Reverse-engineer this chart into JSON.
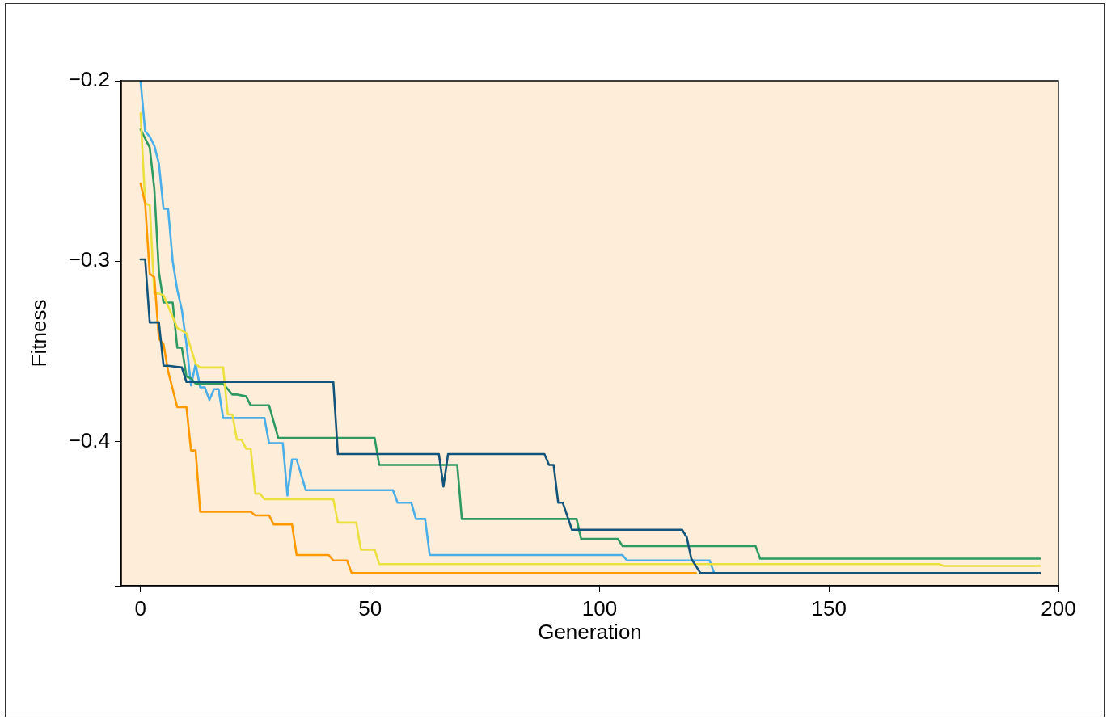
{
  "chart_data": {
    "type": "line",
    "xlabel": "Generation",
    "ylabel": "Fitness",
    "xlim": [
      -4.2,
      200
    ],
    "xticks": [
      0,
      50,
      100,
      150,
      200
    ],
    "ylim": [
      -0.48,
      -0.2
    ],
    "yticks": [
      {
        "value": -0.2,
        "label": "−0.2"
      },
      {
        "value": -0.3,
        "label": "−0.3"
      },
      {
        "value": -0.4,
        "label": "−0.4"
      },
      {
        "value": -0.48,
        "label": null
      }
    ],
    "grid": false,
    "legend": false,
    "marker": "none",
    "line_style": "solid",
    "series": [
      {
        "color": "#13547a",
        "x": [
          0,
          1,
          2,
          4,
          5,
          6,
          9,
          10,
          42,
          43,
          65,
          66,
          67,
          88,
          89,
          90,
          91,
          92,
          94,
          118,
          119,
          120,
          122,
          196
        ],
        "values": [
          -0.299,
          -0.299,
          -0.334,
          -0.334,
          -0.358,
          -0.358,
          -0.359,
          -0.367,
          -0.367,
          -0.407,
          -0.407,
          -0.425,
          -0.407,
          -0.407,
          -0.413,
          -0.413,
          -0.434,
          -0.434,
          -0.449,
          -0.449,
          -0.453,
          -0.465,
          -0.473,
          -0.473
        ]
      },
      {
        "color": "#ff9900",
        "x": [
          0,
          1,
          2,
          3,
          4,
          5,
          6,
          8,
          10,
          11,
          12,
          13,
          24,
          25,
          28,
          29,
          33,
          34,
          41,
          42,
          45,
          46,
          121
        ],
        "values": [
          -0.257,
          -0.268,
          -0.307,
          -0.309,
          -0.343,
          -0.346,
          -0.361,
          -0.381,
          -0.381,
          -0.405,
          -0.405,
          -0.439,
          -0.439,
          -0.441,
          -0.441,
          -0.446,
          -0.446,
          -0.463,
          -0.463,
          -0.466,
          -0.466,
          -0.473,
          -0.473
        ]
      },
      {
        "color": "#ece03f",
        "x": [
          0,
          1,
          2,
          3,
          4,
          5,
          8,
          10,
          12,
          13,
          18,
          19,
          20,
          21,
          22,
          23,
          24,
          25,
          26,
          27,
          42,
          43,
          47,
          48,
          51,
          52,
          174,
          175,
          196
        ],
        "values": [
          -0.218,
          -0.268,
          -0.269,
          -0.318,
          -0.318,
          -0.319,
          -0.337,
          -0.34,
          -0.357,
          -0.359,
          -0.359,
          -0.385,
          -0.385,
          -0.399,
          -0.399,
          -0.404,
          -0.404,
          -0.429,
          -0.429,
          -0.432,
          -0.432,
          -0.445,
          -0.445,
          -0.46,
          -0.46,
          -0.468,
          -0.468,
          -0.469,
          -0.469
        ]
      },
      {
        "color": "#2e9a62",
        "x": [
          0,
          2,
          3,
          4,
          5,
          7,
          8,
          9,
          10,
          11,
          12,
          18,
          20,
          21,
          23,
          24,
          28,
          30,
          51,
          52,
          69,
          70,
          95,
          96,
          104,
          105,
          134,
          135,
          196
        ],
        "values": [
          -0.227,
          -0.237,
          -0.26,
          -0.306,
          -0.323,
          -0.323,
          -0.348,
          -0.348,
          -0.364,
          -0.365,
          -0.368,
          -0.368,
          -0.374,
          -0.374,
          -0.375,
          -0.38,
          -0.38,
          -0.398,
          -0.398,
          -0.413,
          -0.413,
          -0.443,
          -0.443,
          -0.454,
          -0.454,
          -0.458,
          -0.458,
          -0.465,
          -0.465
        ]
      },
      {
        "color": "#4aaee8",
        "x": [
          0,
          1,
          2,
          3,
          4,
          5,
          6,
          7,
          8,
          9,
          10,
          11,
          12,
          13,
          14,
          15,
          16,
          17,
          18,
          27,
          28,
          31,
          32,
          33,
          34,
          36,
          55,
          56,
          59,
          60,
          62,
          63,
          105,
          106,
          124,
          125,
          196
        ],
        "values": [
          -0.2,
          -0.228,
          -0.231,
          -0.236,
          -0.246,
          -0.271,
          -0.271,
          -0.3,
          -0.316,
          -0.327,
          -0.346,
          -0.369,
          -0.357,
          -0.37,
          -0.37,
          -0.377,
          -0.371,
          -0.371,
          -0.387,
          -0.387,
          -0.401,
          -0.401,
          -0.43,
          -0.41,
          -0.41,
          -0.427,
          -0.427,
          -0.434,
          -0.434,
          -0.443,
          -0.443,
          -0.463,
          -0.463,
          -0.466,
          -0.466,
          -0.473,
          -0.473
        ]
      }
    ]
  }
}
